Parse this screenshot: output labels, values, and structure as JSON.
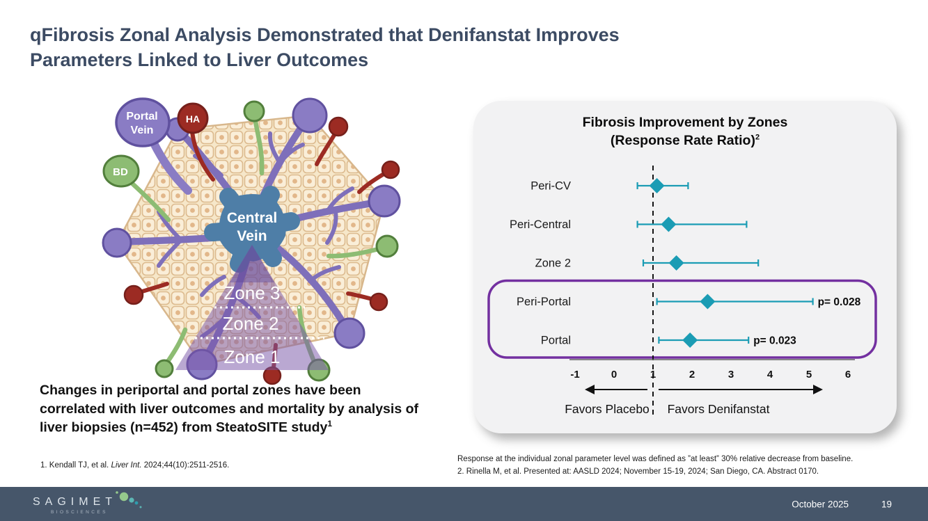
{
  "slide": {
    "title": "qFibrosis Zonal Analysis Demonstrated that Denifanstat Improves Parameters Linked to Liver Outcomes"
  },
  "diagram": {
    "labels": {
      "portal_vein_line1": "Portal",
      "portal_vein_line2": "Vein",
      "ha": "HA",
      "bd": "BD",
      "central_vein_line1": "Central",
      "central_vein_line2": "Vein",
      "zone3": "Zone 3",
      "zone2": "Zone 2",
      "zone1": "Zone 1"
    },
    "colors": {
      "portal": "#8a7cc4",
      "portal_outline": "#60519f",
      "artery": "#9c2b23",
      "artery_outline": "#76201b",
      "bile": "#8dbc73",
      "bile_outline": "#527f3c",
      "central_vein": "#4e7ea7",
      "tissue": "#faeed8",
      "tissue_line": "#dcba8e",
      "zone_overlay": "rgba(122,88,168,0.52)"
    },
    "caption": "Changes in periportal and portal zones have been correlated with liver outcomes and mortality by analysis of liver biopsies (n=452) from SteatoSITE study",
    "caption_superscript": "1",
    "footnote_prefix": "1. Kendall TJ, et al. ",
    "footnote_italic": "Liver Int.",
    "footnote_suffix": " 2024;44(10):2511-2516."
  },
  "chart_data": {
    "type": "forest",
    "title_line1": "Fibrosis Improvement by Zones",
    "title_line2": "(Response Rate Ratio)",
    "title_superscript": "2",
    "categories": [
      "Peri-CV",
      "Peri-Central",
      "Zone 2",
      "Peri-Portal",
      "Portal"
    ],
    "series": [
      {
        "name": "Response Rate Ratio",
        "estimates": [
          1.1,
          1.4,
          1.6,
          2.4,
          1.95
        ],
        "ci_low": [
          0.6,
          0.6,
          0.75,
          1.1,
          1.15
        ],
        "ci_high": [
          1.9,
          3.4,
          3.7,
          5.1,
          3.45
        ]
      }
    ],
    "p_values": [
      null,
      null,
      null,
      "p= 0.028",
      "p= 0.023"
    ],
    "x_ticks": [
      -1,
      0,
      1,
      2,
      3,
      4,
      5,
      6
    ],
    "xlim": [
      -1,
      6
    ],
    "reference_line": 1,
    "grid": false,
    "axis_label_left": "Favors Placebo",
    "axis_label_right": "Favors Denifanstat",
    "highlight_categories": [
      "Peri-Portal",
      "Portal"
    ],
    "marker_color": "#1b9cb4",
    "highlight_box_color": "#7330a0"
  },
  "chart_footnotes": {
    "line1": "Response at the individual zonal parameter level was defined as ”at least” 30% relative decrease from baseline.",
    "line2": "2. Rinella M, et al. Presented at: AASLD 2024; November 15-19, 2024; San Diego, CA. Abstract 0170."
  },
  "footer": {
    "logo_text": "SAGIMET",
    "logo_subtext": "BIOSCIENCES",
    "date": "October 2025",
    "page_number": "19"
  }
}
